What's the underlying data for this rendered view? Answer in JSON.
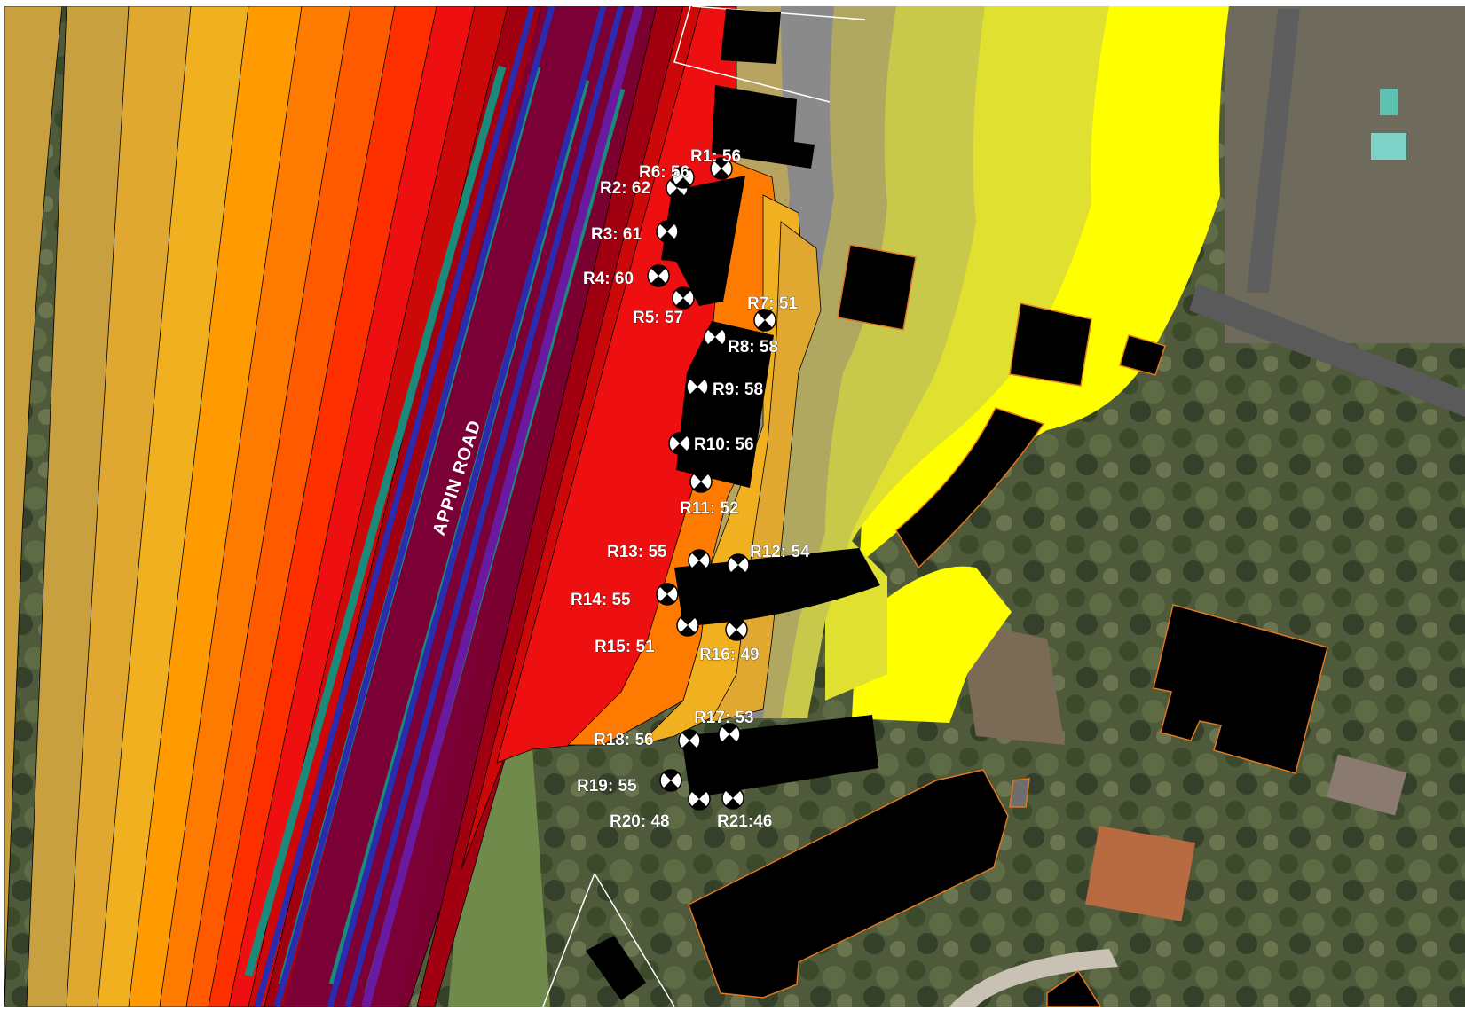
{
  "map": {
    "road_label": "APPIN ROAD",
    "contour_colors": [
      "#c8a040",
      "#e0a830",
      "#f0b020",
      "#ff9a00",
      "#ff7a00",
      "#ff5a00",
      "#ff3000",
      "#ee1010",
      "#cc0808",
      "#a00010",
      "#7a0030"
    ],
    "receivers": [
      {
        "id": "R1",
        "label": "R1: 56"
      },
      {
        "id": "R2",
        "label": "R2: 62"
      },
      {
        "id": "R3",
        "label": "R3: 61"
      },
      {
        "id": "R4",
        "label": "R4: 60"
      },
      {
        "id": "R5",
        "label": "R5: 57"
      },
      {
        "id": "R6",
        "label": "R6: 56"
      },
      {
        "id": "R7",
        "label": "R7: 51"
      },
      {
        "id": "R8",
        "label": "R8: 58"
      },
      {
        "id": "R9",
        "label": "R9: 58"
      },
      {
        "id": "R10",
        "label": "R10: 56"
      },
      {
        "id": "R11",
        "label": "R11: 52"
      },
      {
        "id": "R12",
        "label": "R12: 54"
      },
      {
        "id": "R13",
        "label": "R13: 55"
      },
      {
        "id": "R14",
        "label": "R14: 55"
      },
      {
        "id": "R15",
        "label": "R15: 51"
      },
      {
        "id": "R16",
        "label": "R16: 49"
      },
      {
        "id": "R17",
        "label": "R17: 53"
      },
      {
        "id": "R18",
        "label": "R18: 56"
      },
      {
        "id": "R19",
        "label": "R19: 55"
      },
      {
        "id": "R20",
        "label": "R20: 48"
      },
      {
        "id": "R21",
        "label": "R21:46"
      }
    ]
  }
}
